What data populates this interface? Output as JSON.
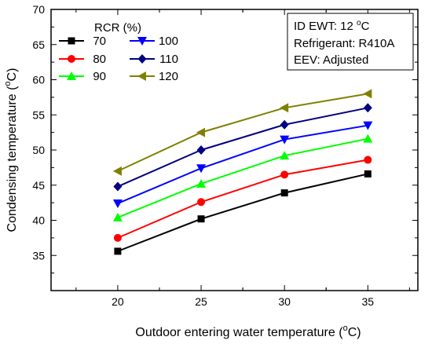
{
  "chart_data": {
    "type": "line",
    "title": "",
    "xlabel_main": "Outdoor entering water temperature (",
    "xlabel_sup": "o",
    "xlabel_end": "C)",
    "ylabel_main": "Condensing temperature (",
    "ylabel_sup": "o",
    "ylabel_end": "C)",
    "xlim": [
      16,
      38
    ],
    "ylim": [
      30,
      70
    ],
    "x": [
      20,
      25,
      30,
      35
    ],
    "x_ticks": [
      20,
      25,
      30,
      35
    ],
    "y_ticks": [
      35,
      40,
      45,
      50,
      55,
      60,
      65,
      70
    ],
    "grid": false,
    "legend": {
      "title": "RCR (%)",
      "placement": "top-left"
    },
    "series": [
      {
        "name": "70",
        "marker": "square",
        "color": "#000000",
        "values": [
          35.6,
          40.2,
          43.9,
          46.6
        ]
      },
      {
        "name": "80",
        "marker": "circle",
        "color": "#ff0000",
        "values": [
          37.5,
          42.6,
          46.5,
          48.6
        ]
      },
      {
        "name": "90",
        "marker": "triangle-up",
        "color": "#00ff00",
        "values": [
          40.4,
          45.2,
          49.2,
          51.6
        ]
      },
      {
        "name": "100",
        "marker": "triangle-down",
        "color": "#0000ff",
        "values": [
          42.4,
          47.4,
          51.5,
          53.5
        ]
      },
      {
        "name": "110",
        "marker": "diamond",
        "color": "#000080",
        "values": [
          44.8,
          50.0,
          53.6,
          56.0
        ]
      },
      {
        "name": "120",
        "marker": "triangle-left",
        "color": "#808000",
        "values": [
          47.0,
          52.5,
          56.0,
          58.0
        ]
      }
    ],
    "annotation": {
      "line1_main": "ID EWT: 12 ",
      "line1_sup": "o",
      "line1_end": "C",
      "line2": "Refrigerant: R410A",
      "line3": "EEV: Adjusted"
    }
  }
}
